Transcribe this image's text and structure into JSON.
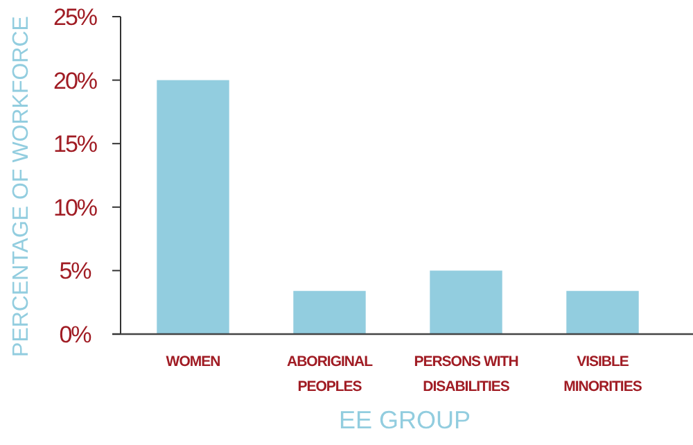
{
  "chart_data": {
    "type": "bar",
    "xlabel": "EE GROUP",
    "ylabel": "PERCENTAGE OF WORKFORCE",
    "categories": [
      "WOMEN",
      "ABORIGINAL PEOPLES",
      "PERSONS WITH DISABILITIES",
      "VISIBLE MINORITIES"
    ],
    "values": [
      20,
      3.4,
      5,
      3.4
    ],
    "color": "#92cddf",
    "ylim": [
      0,
      25
    ],
    "yticks": [
      {
        "value": 0,
        "label": "0%"
      },
      {
        "value": 5,
        "label": "5%"
      },
      {
        "value": 10,
        "label": "10%"
      },
      {
        "value": 15,
        "label": "15%"
      },
      {
        "value": 20,
        "label": "20%"
      },
      {
        "value": 25,
        "label": "25%"
      }
    ],
    "grid": false
  }
}
